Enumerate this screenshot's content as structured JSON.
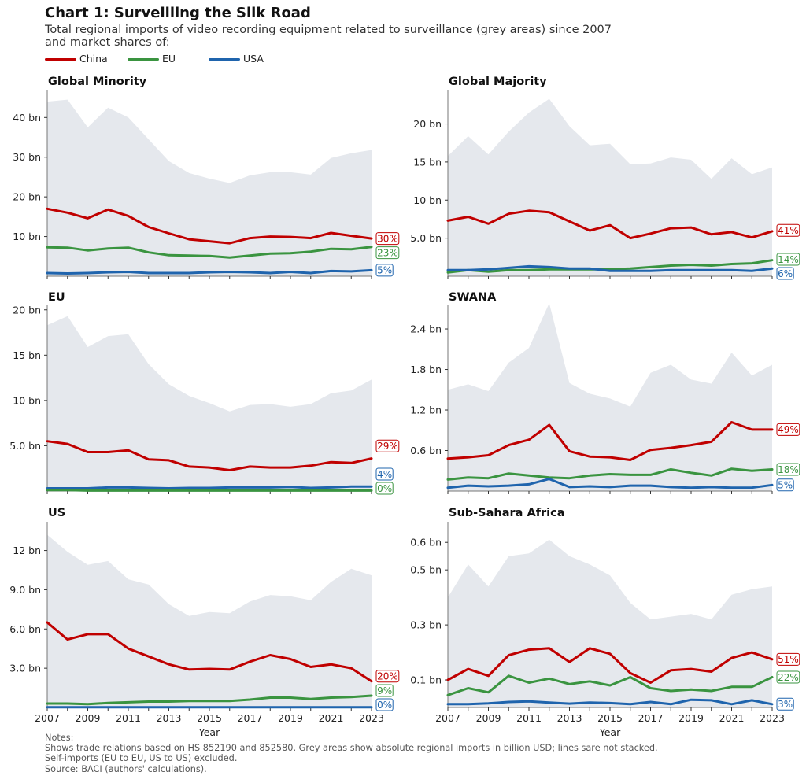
{
  "title": "Chart 1: Surveilling the Silk Road",
  "subtitle": "Total regional imports of video recording equipment related to surveillance (grey areas) since 2007 and market shares of:",
  "legend": [
    {
      "label": "China",
      "color": "#c00000"
    },
    {
      "label": "EU",
      "color": "#3a9440"
    },
    {
      "label": "USA",
      "color": "#1f64ad"
    }
  ],
  "colors": {
    "area": "#e5e8ed",
    "china": "#c00000",
    "eu": "#3a9440",
    "usa": "#1f64ad"
  },
  "notes": [
    "Notes:",
    "Shows trade relations based on HS 852190 and 852580. Grey areas show absolute regional imports in billion USD; lines sare not stacked.",
    "Self-imports (EU to EU, US to US) excluded.",
    "Source: BACI (authors' calculations)."
  ],
  "chart_data": [
    {
      "type": "area+line",
      "title": "Global Minority",
      "ylim": [
        0,
        47
      ],
      "xlabel": "",
      "ylabel": "",
      "x": [
        2007,
        2008,
        2009,
        2010,
        2011,
        2012,
        2013,
        2014,
        2015,
        2016,
        2017,
        2018,
        2019,
        2020,
        2021,
        2022,
        2023
      ],
      "yticks": [
        10,
        20,
        30,
        40
      ],
      "ytick_labels": [
        "10 bn",
        "20 bn",
        "30 bn",
        "40 bn"
      ],
      "total": [
        44,
        44.5,
        37.5,
        42.5,
        40,
        34.5,
        29,
        26,
        24.6,
        23.5,
        25.4,
        26.2,
        26.2,
        25.6,
        29.8,
        31,
        31.8
      ],
      "series": [
        {
          "name": "China",
          "values": [
            17,
            16,
            14.6,
            16.8,
            15.2,
            12.4,
            10.8,
            9.3,
            8.8,
            8.3,
            9.6,
            10,
            9.9,
            9.6,
            10.9,
            10.2,
            9.5
          ],
          "share": "30%"
        },
        {
          "name": "EU",
          "values": [
            7.3,
            7.2,
            6.5,
            7,
            7.2,
            6,
            5.3,
            5.2,
            5.1,
            4.7,
            5.2,
            5.7,
            5.8,
            6.2,
            6.9,
            6.8,
            7.4
          ],
          "share": "23%"
        },
        {
          "name": "USA",
          "values": [
            0.8,
            0.7,
            0.8,
            1,
            1.1,
            0.8,
            0.8,
            0.8,
            1,
            1.1,
            1,
            0.8,
            1.1,
            0.8,
            1.3,
            1.2,
            1.5
          ],
          "share": "5%"
        }
      ]
    },
    {
      "type": "area+line",
      "title": "Global Majority",
      "ylim": [
        0,
        24.5
      ],
      "xlabel": "",
      "ylabel": "",
      "x": [
        2007,
        2008,
        2009,
        2010,
        2011,
        2012,
        2013,
        2014,
        2015,
        2016,
        2017,
        2018,
        2019,
        2020,
        2021,
        2022,
        2023
      ],
      "yticks": [
        5,
        10,
        15,
        20
      ],
      "ytick_labels": [
        "5.0 bn",
        "10 bn",
        "15 bn",
        "20 bn"
      ],
      "total": [
        15.8,
        18.4,
        16,
        19,
        21.5,
        23.3,
        19.7,
        17.2,
        17.4,
        14.7,
        14.8,
        15.6,
        15.3,
        12.8,
        15.5,
        13.4,
        14.3
      ],
      "series": [
        {
          "name": "China",
          "values": [
            7.3,
            7.8,
            6.9,
            8.2,
            8.6,
            8.4,
            7.2,
            6,
            6.7,
            5,
            5.6,
            6.3,
            6.4,
            5.5,
            5.8,
            5.1,
            5.9
          ],
          "share": "41%"
        },
        {
          "name": "EU",
          "values": [
            0.5,
            0.8,
            0.6,
            0.8,
            0.8,
            0.9,
            0.9,
            0.9,
            0.9,
            1,
            1.2,
            1.4,
            1.5,
            1.4,
            1.6,
            1.7,
            2.1
          ],
          "share": "14%"
        },
        {
          "name": "USA",
          "values": [
            0.8,
            0.8,
            0.9,
            1.1,
            1.3,
            1.2,
            1,
            1,
            0.7,
            0.7,
            0.7,
            0.8,
            0.8,
            0.8,
            0.8,
            0.7,
            1
          ],
          "share": "6%"
        }
      ]
    },
    {
      "type": "area+line",
      "title": "EU",
      "ylim": [
        0,
        20.5
      ],
      "xlabel": "",
      "ylabel": "",
      "x": [
        2007,
        2008,
        2009,
        2010,
        2011,
        2012,
        2013,
        2014,
        2015,
        2016,
        2017,
        2018,
        2019,
        2020,
        2021,
        2022,
        2023
      ],
      "yticks": [
        5,
        10,
        15,
        20
      ],
      "ytick_labels": [
        "5.0 bn",
        "10 bn",
        "15 bn",
        "20 bn"
      ],
      "total": [
        18.3,
        19.3,
        15.9,
        17.1,
        17.3,
        14,
        11.8,
        10.5,
        9.7,
        8.8,
        9.5,
        9.6,
        9.3,
        9.6,
        10.8,
        11.1,
        12.3
      ],
      "series": [
        {
          "name": "China",
          "values": [
            5.5,
            5.2,
            4.3,
            4.3,
            4.5,
            3.5,
            3.4,
            2.7,
            2.6,
            2.3,
            2.7,
            2.6,
            2.6,
            2.8,
            3.2,
            3.1,
            3.6
          ],
          "share": "29%"
        },
        {
          "name": "EU",
          "values": [
            0.1,
            0.1,
            0.05,
            0.05,
            0.05,
            0.05,
            0.05,
            0.05,
            0.05,
            0.05,
            0.05,
            0.05,
            0.05,
            0.05,
            0.05,
            0.05,
            0.05
          ],
          "share": "0%"
        },
        {
          "name": "USA",
          "values": [
            0.3,
            0.3,
            0.3,
            0.4,
            0.4,
            0.35,
            0.3,
            0.35,
            0.35,
            0.4,
            0.4,
            0.4,
            0.45,
            0.35,
            0.4,
            0.5,
            0.5
          ],
          "share": "4%"
        }
      ]
    },
    {
      "type": "area+line",
      "title": "SWANA",
      "ylim": [
        0,
        2.75
      ],
      "xlabel": "",
      "ylabel": "",
      "x": [
        2007,
        2008,
        2009,
        2010,
        2011,
        2012,
        2013,
        2014,
        2015,
        2016,
        2017,
        2018,
        2019,
        2020,
        2021,
        2022,
        2023
      ],
      "yticks": [
        0.6,
        1.2,
        1.8,
        2.4
      ],
      "ytick_labels": [
        "0.6 bn",
        "1.2 bn",
        "1.8 bn",
        "2.4 bn"
      ],
      "total": [
        1.5,
        1.58,
        1.48,
        1.9,
        2.12,
        2.78,
        1.6,
        1.44,
        1.37,
        1.25,
        1.75,
        1.87,
        1.65,
        1.59,
        2.05,
        1.71,
        1.87
      ],
      "series": [
        {
          "name": "China",
          "values": [
            0.48,
            0.5,
            0.53,
            0.68,
            0.76,
            0.98,
            0.59,
            0.51,
            0.5,
            0.46,
            0.61,
            0.64,
            0.68,
            0.73,
            1.02,
            0.91,
            0.91
          ],
          "share": "49%"
        },
        {
          "name": "EU",
          "values": [
            0.17,
            0.2,
            0.19,
            0.26,
            0.23,
            0.2,
            0.19,
            0.23,
            0.25,
            0.24,
            0.24,
            0.32,
            0.27,
            0.23,
            0.33,
            0.3,
            0.32
          ],
          "share": "18%"
        },
        {
          "name": "USA",
          "values": [
            0.05,
            0.08,
            0.07,
            0.08,
            0.1,
            0.18,
            0.06,
            0.07,
            0.06,
            0.08,
            0.08,
            0.06,
            0.05,
            0.06,
            0.05,
            0.05,
            0.09
          ],
          "share": "5%"
        }
      ]
    },
    {
      "type": "area+line",
      "title": "US",
      "ylim": [
        0,
        14.2
      ],
      "xlabel": "Year",
      "ylabel": "",
      "x": [
        2007,
        2008,
        2009,
        2010,
        2011,
        2012,
        2013,
        2014,
        2015,
        2016,
        2017,
        2018,
        2019,
        2020,
        2021,
        2022,
        2023
      ],
      "yticks": [
        3,
        6,
        9,
        12
      ],
      "ytick_labels": [
        "3.0 bn",
        "6.0 bn",
        "9.0 bn",
        "12 bn"
      ],
      "total": [
        13.2,
        11.9,
        10.9,
        11.2,
        9.8,
        9.4,
        7.9,
        7,
        7.3,
        7.2,
        8.1,
        8.6,
        8.5,
        8.2,
        9.6,
        10.6,
        10.1
      ],
      "series": [
        {
          "name": "China",
          "values": [
            6.5,
            5.2,
            5.6,
            5.6,
            4.5,
            3.9,
            3.3,
            2.9,
            2.95,
            2.9,
            3.5,
            4,
            3.7,
            3.1,
            3.3,
            3,
            2
          ],
          "share": "20%"
        },
        {
          "name": "EU",
          "values": [
            0.3,
            0.3,
            0.25,
            0.35,
            0.4,
            0.45,
            0.45,
            0.5,
            0.5,
            0.5,
            0.6,
            0.75,
            0.75,
            0.65,
            0.75,
            0.8,
            0.9
          ],
          "share": "9%"
        },
        {
          "name": "USA",
          "values": [
            0.02,
            0.02,
            0.02,
            0.02,
            0.02,
            0.02,
            0.02,
            0.02,
            0.02,
            0.02,
            0.02,
            0.02,
            0.02,
            0.02,
            0.02,
            0.02,
            0.02
          ],
          "share": "0%"
        }
      ]
    },
    {
      "type": "area+line",
      "title": "Sub-Sahara Africa",
      "ylim": [
        0,
        0.675
      ],
      "xlabel": "Year",
      "ylabel": "",
      "x": [
        2007,
        2008,
        2009,
        2010,
        2011,
        2012,
        2013,
        2014,
        2015,
        2016,
        2017,
        2018,
        2019,
        2020,
        2021,
        2022,
        2023
      ],
      "yticks": [
        0.1,
        0.3,
        0.5,
        0.6
      ],
      "ytick_labels": [
        "0.1 bn",
        "0.3 bn",
        "0.5 bn",
        "0.6 bn"
      ],
      "total": [
        0.4,
        0.52,
        0.44,
        0.55,
        0.56,
        0.61,
        0.55,
        0.52,
        0.48,
        0.38,
        0.32,
        0.33,
        0.34,
        0.32,
        0.41,
        0.43,
        0.44
      ],
      "series": [
        {
          "name": "China",
          "values": [
            0.1,
            0.14,
            0.115,
            0.19,
            0.21,
            0.215,
            0.165,
            0.215,
            0.195,
            0.125,
            0.09,
            0.135,
            0.14,
            0.13,
            0.18,
            0.2,
            0.175
          ],
          "share": "51%"
        },
        {
          "name": "EU",
          "values": [
            0.045,
            0.07,
            0.055,
            0.115,
            0.09,
            0.105,
            0.085,
            0.095,
            0.08,
            0.11,
            0.07,
            0.06,
            0.065,
            0.06,
            0.075,
            0.075,
            0.11
          ],
          "share": "22%"
        },
        {
          "name": "USA",
          "values": [
            0.012,
            0.012,
            0.015,
            0.02,
            0.022,
            0.018,
            0.014,
            0.018,
            0.016,
            0.012,
            0.02,
            0.012,
            0.028,
            0.026,
            0.012,
            0.026,
            0.012
          ],
          "share": "3%"
        }
      ]
    }
  ]
}
